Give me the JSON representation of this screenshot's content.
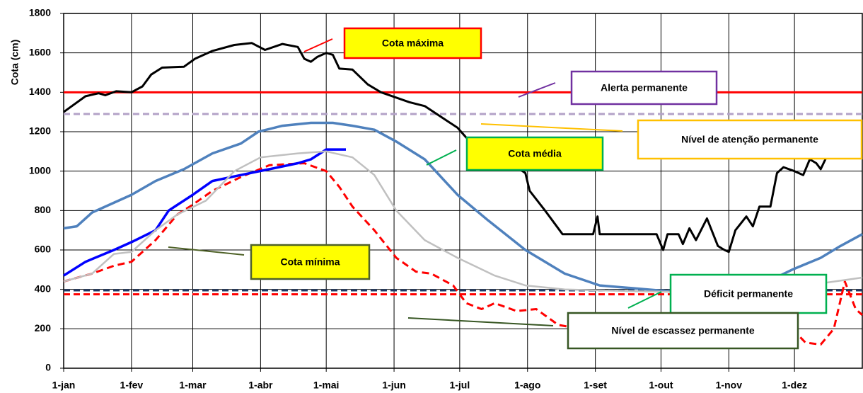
{
  "chart_data": {
    "type": "line",
    "y_axis_label": "Cota (cm)",
    "xlim": [
      0,
      365
    ],
    "xticks": [
      {
        "value": 0,
        "label": "1-jan"
      },
      {
        "value": 31,
        "label": "1-fev"
      },
      {
        "value": 59,
        "label": "1-mar"
      },
      {
        "value": 90,
        "label": "1-abr"
      },
      {
        "value": 120,
        "label": "1-mai"
      },
      {
        "value": 151,
        "label": "1-jun"
      },
      {
        "value": 181,
        "label": "1-jul"
      },
      {
        "value": 212,
        "label": "1-ago"
      },
      {
        "value": 243,
        "label": "1-set"
      },
      {
        "value": 273,
        "label": "1-out"
      },
      {
        "value": 304,
        "label": "1-nov"
      },
      {
        "value": 334,
        "label": "1-dez"
      }
    ],
    "ylim": [
      0,
      1800
    ],
    "yticks": [
      0,
      200,
      400,
      600,
      800,
      1000,
      1200,
      1400,
      1600,
      1800
    ],
    "grid": true,
    "reference_lines": [
      {
        "label": "Alerta permanente",
        "value": 1400,
        "color": "#ff0000",
        "dashed": false,
        "box_fill": "#ffffff",
        "box_border": "#7030a0"
      },
      {
        "label": "Nível de atenção permanente",
        "value": 1290,
        "color": "#b3a2c7",
        "dashed": true,
        "box_fill": "#ffffff",
        "box_border": "#ffc000"
      },
      {
        "label": "Déficit permanente",
        "value": 395,
        "color": "#1f3864",
        "dashed": true,
        "box_fill": "#ffffff",
        "box_border": "#00b050"
      },
      {
        "label": "Nível de escassez permanente",
        "value": 375,
        "color": "#ff0000",
        "dashed": true,
        "box_fill": "#ffffff",
        "box_border": "#375623"
      }
    ],
    "series": [
      {
        "name": "Cota máxima",
        "color": "#000000",
        "dashed": false,
        "box_fill": "#ffff00",
        "box_border": "#ff0000",
        "x": [
          0,
          10,
          16,
          19,
          24,
          31,
          36,
          40,
          45,
          55,
          60,
          68,
          78,
          86,
          92,
          100,
          107,
          110,
          113,
          116,
          120,
          123,
          126,
          132,
          139,
          145,
          158,
          165,
          180,
          184,
          197,
          211,
          213,
          220,
          228,
          242,
          244,
          245,
          271,
          274,
          276,
          281,
          283,
          286,
          289,
          294,
          299,
          302,
          304,
          307,
          312,
          315,
          318,
          323,
          326,
          329,
          334,
          338,
          341,
          344,
          346,
          349
        ],
        "values": [
          1300,
          1380,
          1395,
          1385,
          1405,
          1400,
          1430,
          1490,
          1525,
          1530,
          1570,
          1610,
          1640,
          1650,
          1615,
          1645,
          1630,
          1570,
          1555,
          1580,
          1600,
          1590,
          1520,
          1515,
          1440,
          1400,
          1350,
          1330,
          1220,
          1170,
          1095,
          990,
          900,
          800,
          680,
          680,
          770,
          680,
          680,
          600,
          680,
          680,
          630,
          710,
          650,
          760,
          620,
          600,
          590,
          700,
          770,
          720,
          820,
          820,
          990,
          1020,
          1000,
          980,
          1060,
          1040,
          1010,
          1080
        ]
      },
      {
        "name": "Cota média",
        "color": "#4f81bd",
        "dashed": false,
        "box_fill": "#ffff00",
        "box_border": "#00b050",
        "x": [
          0,
          6,
          13,
          31,
          42,
          55,
          68,
          81,
          89,
          100,
          113,
          123,
          132,
          142,
          152,
          165,
          180,
          194,
          211,
          229,
          245,
          272,
          287,
          303,
          320,
          333,
          346,
          355,
          365
        ],
        "values": [
          710,
          720,
          790,
          880,
          950,
          1010,
          1090,
          1140,
          1200,
          1230,
          1245,
          1245,
          1230,
          1210,
          1150,
          1060,
          880,
          750,
          600,
          480,
          420,
          395,
          385,
          385,
          430,
          500,
          560,
          620,
          680
        ]
      },
      {
        "name": "Cota mínima",
        "color": "#ff0000",
        "dashed": true,
        "box_fill": "#ffff00",
        "box_border": "#4f6228",
        "x": [
          0,
          13,
          23,
          31,
          42,
          52,
          59,
          68,
          81,
          94,
          110,
          120,
          126,
          132,
          142,
          152,
          161,
          168,
          178,
          184,
          191,
          197,
          207,
          216,
          226,
          236,
          242,
          255,
          272,
          281,
          294,
          303,
          320,
          333,
          339,
          346,
          352,
          357,
          362,
          365
        ],
        "values": [
          440,
          480,
          520,
          540,
          650,
          780,
          830,
          900,
          970,
          1030,
          1040,
          1000,
          920,
          820,
          700,
          560,
          490,
          480,
          420,
          330,
          300,
          330,
          290,
          300,
          220,
          200,
          180,
          190,
          200,
          180,
          220,
          250,
          240,
          200,
          130,
          120,
          200,
          440,
          300,
          270
        ]
      },
      {
        "color": "#0000ff",
        "dashed": false,
        "x": [
          0,
          10,
          23,
          31,
          42,
          48,
          59,
          68,
          81,
          94,
          107,
          113,
          120,
          129
        ],
        "values": [
          470,
          540,
          600,
          640,
          700,
          800,
          880,
          950,
          980,
          1010,
          1040,
          1060,
          1110,
          1110
        ]
      },
      {
        "color": "#c0c0c0",
        "dashed": false,
        "x": [
          0,
          13,
          23,
          31,
          42,
          52,
          65,
          78,
          90,
          107,
          120,
          132,
          142,
          152,
          165,
          180,
          197,
          211,
          229,
          262,
          294,
          326,
          346,
          365
        ],
        "values": [
          440,
          480,
          580,
          590,
          700,
          780,
          850,
          1000,
          1070,
          1090,
          1100,
          1070,
          980,
          800,
          650,
          560,
          470,
          420,
          400,
          390,
          385,
          410,
          430,
          460
        ]
      }
    ]
  }
}
